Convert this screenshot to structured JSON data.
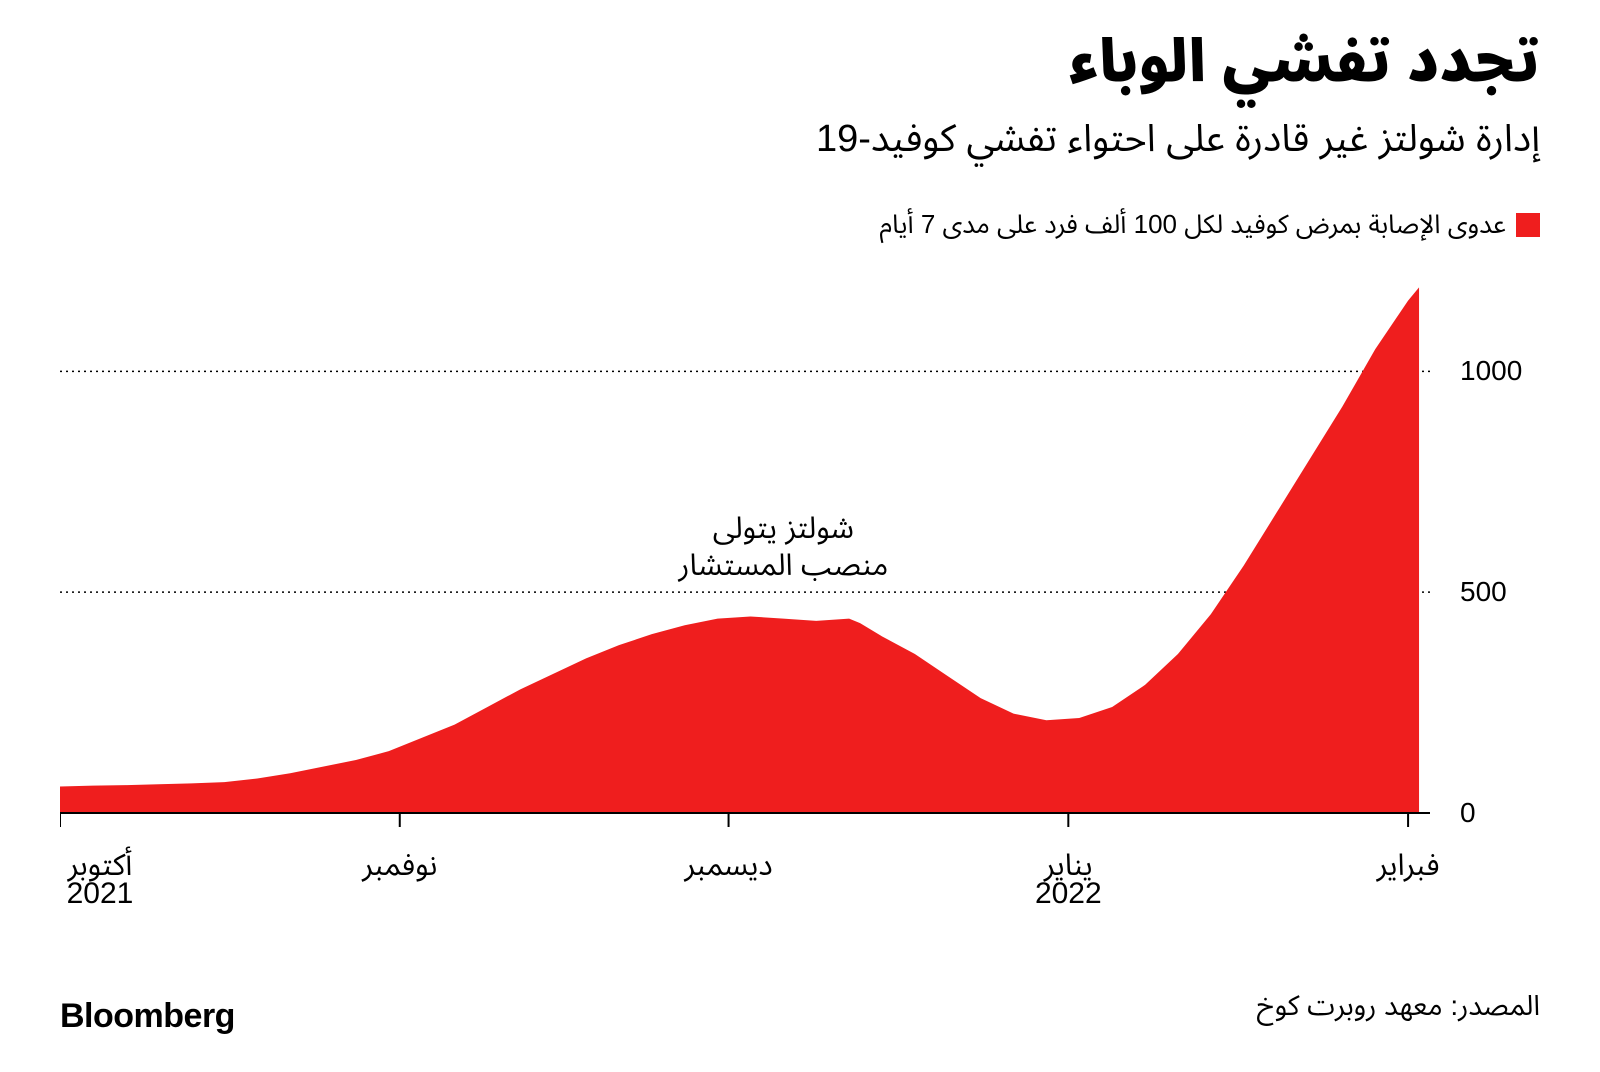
{
  "title": "تجدد تفشي الوباء",
  "subtitle": "إدارة شولتز غير قادرة على احتواء تفشي كوفيد-19",
  "legend": {
    "color": "#ef1e1e",
    "label": "عدوى الإصابة بمرض كوفيد لكل 100 ألف فرد على مدى 7 أيام"
  },
  "chart": {
    "type": "area",
    "series_color": "#ef1e1e",
    "background_color": "#ffffff",
    "grid_color": "#000000",
    "grid_dash": "2,4",
    "axis_color": "#000000",
    "text_color": "#000000",
    "ylim": [
      0,
      1200
    ],
    "y_ticks": [
      0,
      500,
      1000
    ],
    "x_domain": [
      0,
      125
    ],
    "x_ticks": [
      {
        "pos": 0,
        "label": "أكتوبر",
        "sub": "2021"
      },
      {
        "pos": 31,
        "label": "نوفمبر",
        "sub": ""
      },
      {
        "pos": 61,
        "label": "ديسمبر",
        "sub": ""
      },
      {
        "pos": 92,
        "label": "يناير",
        "sub": "2022"
      },
      {
        "pos": 123,
        "label": "فبراير",
        "sub": ""
      }
    ],
    "annotation": {
      "text_line1": "شولتز يتولى",
      "text_line2": "منصب المستشار",
      "x": 66,
      "y_value": 510
    },
    "data": [
      {
        "x": 0,
        "y": 60
      },
      {
        "x": 3,
        "y": 62
      },
      {
        "x": 6,
        "y": 63
      },
      {
        "x": 9,
        "y": 65
      },
      {
        "x": 12,
        "y": 67
      },
      {
        "x": 15,
        "y": 70
      },
      {
        "x": 18,
        "y": 78
      },
      {
        "x": 21,
        "y": 90
      },
      {
        "x": 24,
        "y": 105
      },
      {
        "x": 27,
        "y": 120
      },
      {
        "x": 30,
        "y": 140
      },
      {
        "x": 33,
        "y": 170
      },
      {
        "x": 36,
        "y": 200
      },
      {
        "x": 39,
        "y": 240
      },
      {
        "x": 42,
        "y": 280
      },
      {
        "x": 45,
        "y": 315
      },
      {
        "x": 48,
        "y": 350
      },
      {
        "x": 51,
        "y": 380
      },
      {
        "x": 54,
        "y": 405
      },
      {
        "x": 57,
        "y": 425
      },
      {
        "x": 60,
        "y": 440
      },
      {
        "x": 63,
        "y": 445
      },
      {
        "x": 66,
        "y": 440
      },
      {
        "x": 69,
        "y": 435
      },
      {
        "x": 72,
        "y": 440
      },
      {
        "x": 73,
        "y": 430
      },
      {
        "x": 75,
        "y": 400
      },
      {
        "x": 78,
        "y": 360
      },
      {
        "x": 81,
        "y": 310
      },
      {
        "x": 84,
        "y": 260
      },
      {
        "x": 87,
        "y": 225
      },
      {
        "x": 90,
        "y": 210
      },
      {
        "x": 93,
        "y": 215
      },
      {
        "x": 96,
        "y": 240
      },
      {
        "x": 99,
        "y": 290
      },
      {
        "x": 102,
        "y": 360
      },
      {
        "x": 105,
        "y": 450
      },
      {
        "x": 108,
        "y": 560
      },
      {
        "x": 111,
        "y": 680
      },
      {
        "x": 114,
        "y": 800
      },
      {
        "x": 117,
        "y": 920
      },
      {
        "x": 120,
        "y": 1050
      },
      {
        "x": 123,
        "y": 1160
      },
      {
        "x": 124,
        "y": 1190
      }
    ],
    "tick_length": 14,
    "tick_font_size": 28,
    "label_font_size": 30
  },
  "source": "المصدر: معهد روبرت كوخ",
  "brand": "Bloomberg"
}
